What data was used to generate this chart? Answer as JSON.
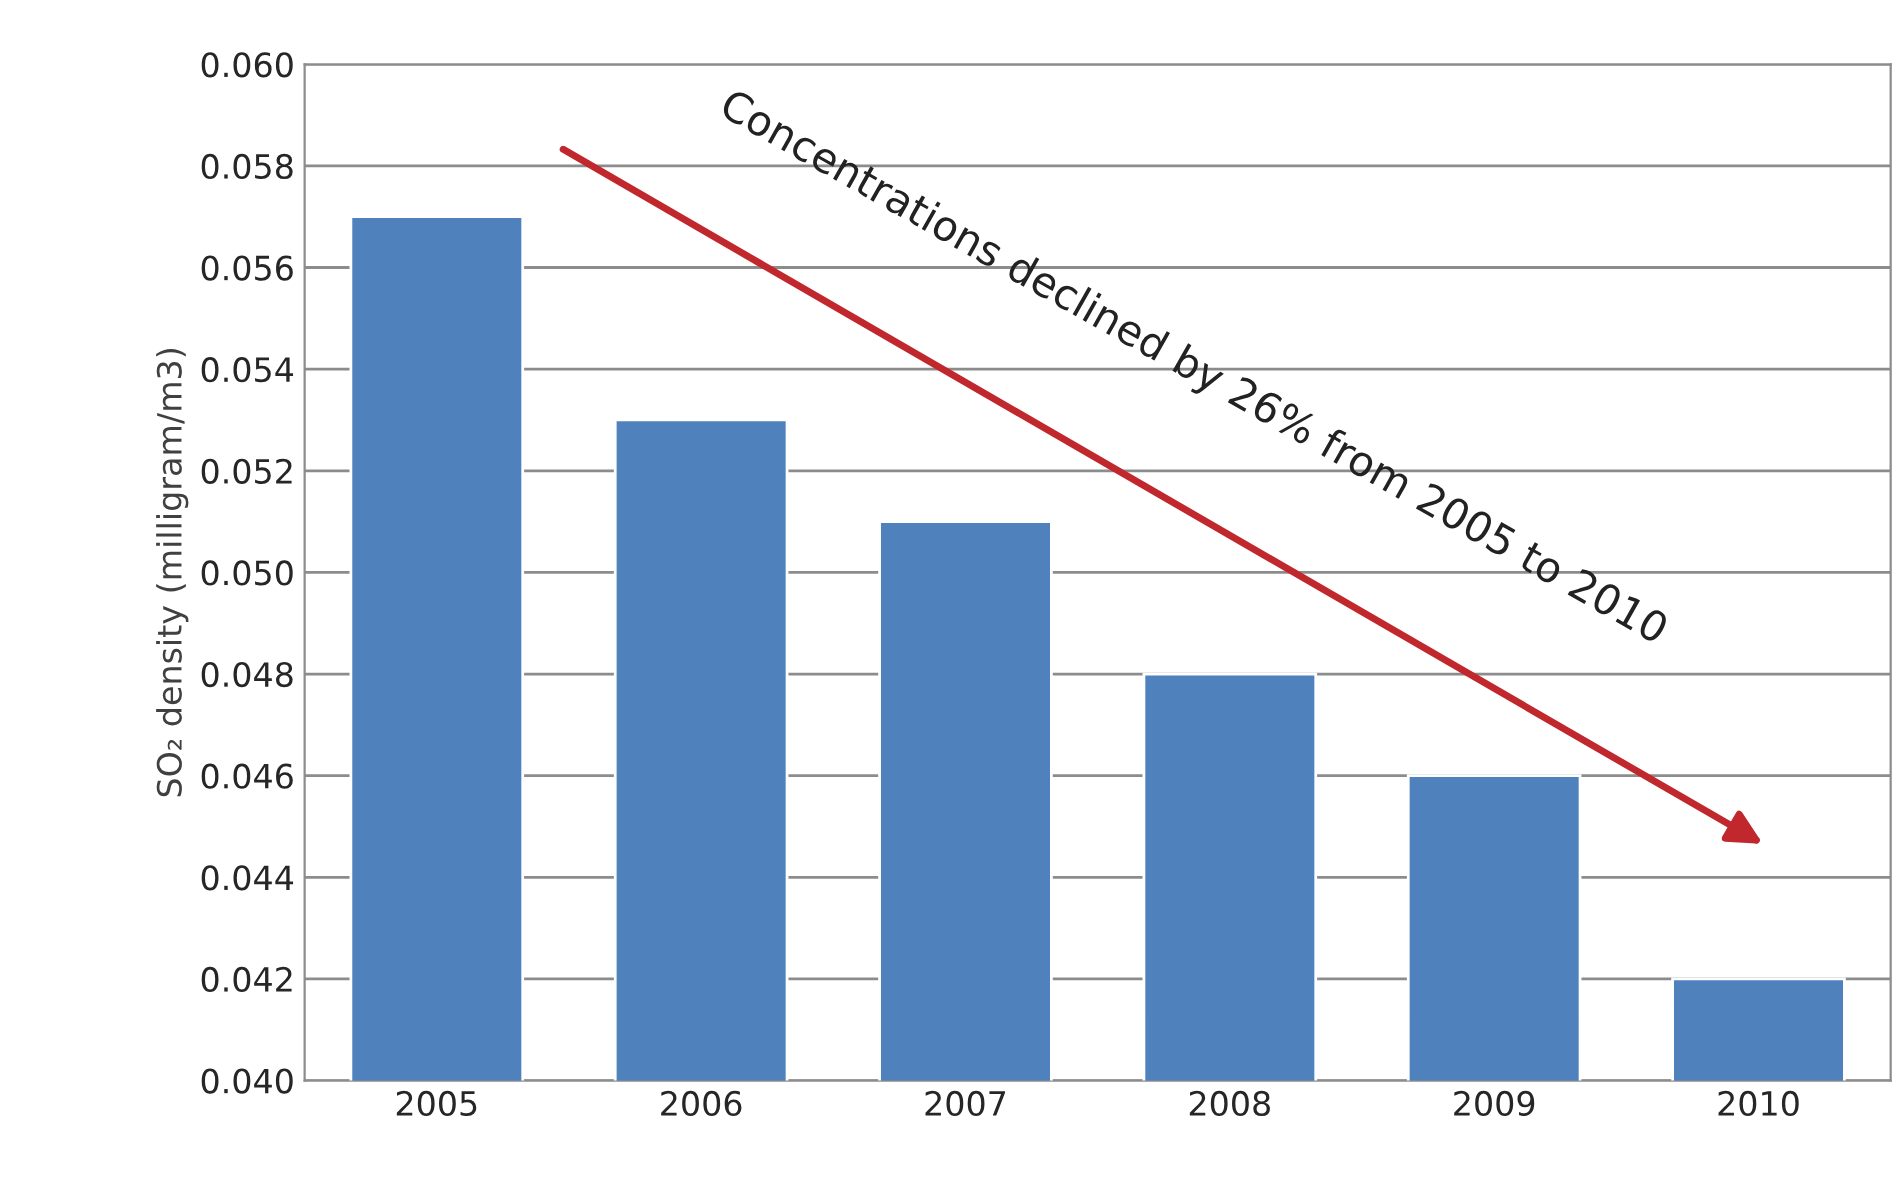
{
  "chart_data": {
    "type": "bar",
    "ylabel": "SO₂ density (milligram/m3)",
    "categories": [
      "2005",
      "2006",
      "2007",
      "2008",
      "2009",
      "2010"
    ],
    "values": [
      0.057,
      0.053,
      0.051,
      0.048,
      0.046,
      0.042
    ],
    "color": "#4f81bd",
    "ylim": [
      0.04,
      0.06
    ],
    "yticks": [
      {
        "value": 0.04,
        "label": "0.040"
      },
      {
        "value": 0.042,
        "label": "0.042"
      },
      {
        "value": 0.044,
        "label": "0.044"
      },
      {
        "value": 0.046,
        "label": "0.046"
      },
      {
        "value": 0.048,
        "label": "0.048"
      },
      {
        "value": 0.05,
        "label": "0.050"
      },
      {
        "value": 0.052,
        "label": "0.052"
      },
      {
        "value": 0.054,
        "label": "0.054"
      },
      {
        "value": 0.056,
        "label": "0.056"
      },
      {
        "value": 0.058,
        "label": "0.058"
      },
      {
        "value": 0.06,
        "label": "0.060"
      }
    ],
    "grid": "y",
    "legend": false,
    "annotations": [
      "Concentrations declined by 26% from 2005 to 2010"
    ]
  }
}
